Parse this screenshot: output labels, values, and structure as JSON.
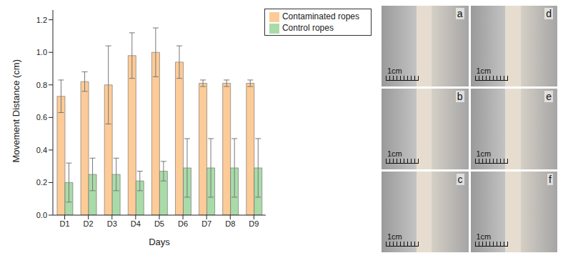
{
  "chart_data": {
    "type": "bar",
    "x_label": "Days",
    "y_label": "Movement Distance (cm)",
    "categories": [
      "D1",
      "D2",
      "D3",
      "D4",
      "D5",
      "D6",
      "D7",
      "D8",
      "D9"
    ],
    "series": [
      {
        "name": "Contaminated ropes",
        "color": "#fdcb97",
        "values": [
          0.73,
          0.82,
          0.8,
          0.98,
          1.0,
          0.94,
          0.81,
          0.81,
          0.81
        ],
        "errors": [
          0.1,
          0.06,
          0.24,
          0.14,
          0.15,
          0.1,
          0.02,
          0.02,
          0.02
        ]
      },
      {
        "name": "Control ropes",
        "color": "#a9dba9",
        "values": [
          0.2,
          0.25,
          0.25,
          0.21,
          0.27,
          0.29,
          0.29,
          0.29,
          0.29
        ],
        "errors": [
          0.12,
          0.1,
          0.1,
          0.06,
          0.06,
          0.18,
          0.18,
          0.18,
          0.18
        ]
      }
    ],
    "ylim": [
      0,
      1.26
    ],
    "yticks": [
      {
        "value": 0,
        "label": "0.0"
      },
      {
        "value": 0.2,
        "label": "0.2"
      },
      {
        "value": 0.4,
        "label": "0.4"
      },
      {
        "value": 0.6,
        "label": "0.6"
      },
      {
        "value": 0.8,
        "label": "0.8"
      },
      {
        "value": 1.0,
        "label": "1.0"
      },
      {
        "value": 1.2,
        "label": "1.2"
      }
    ],
    "legend": "upper right",
    "grid": false
  },
  "photos": {
    "labels": [
      "a",
      "b",
      "c",
      "d",
      "e",
      "f"
    ],
    "scale_label": "1cm"
  }
}
